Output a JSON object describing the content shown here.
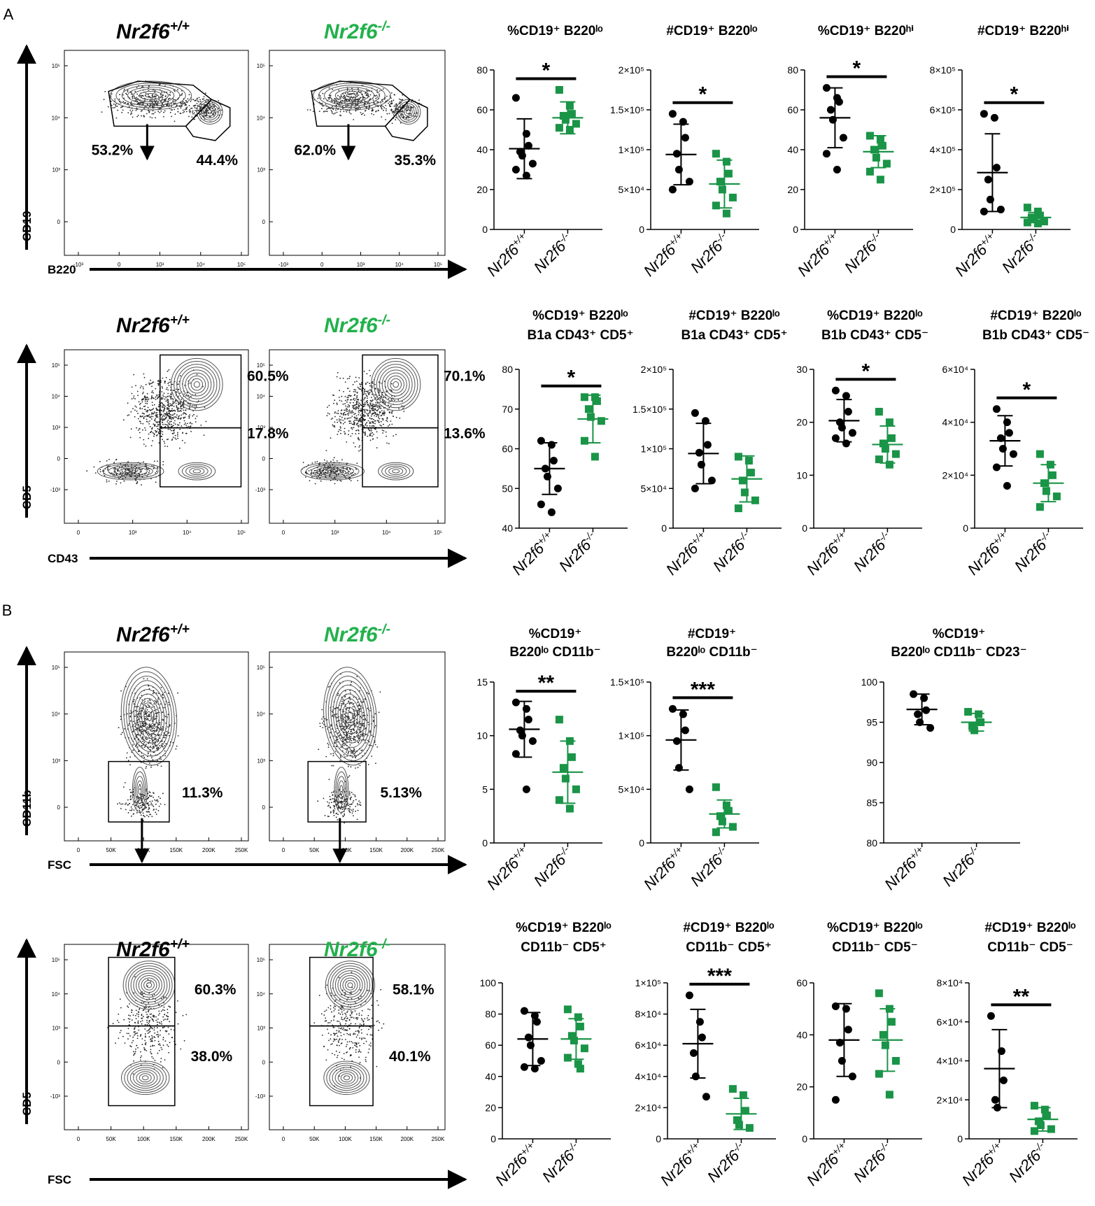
{
  "panel_labels": [
    "A",
    "B"
  ],
  "colors": {
    "wt": "#000000",
    "ko": "#1a9447",
    "geno_ko": "#22b14c",
    "contour": "#555555"
  },
  "flow_rows": [
    {
      "genotypes": [
        "Nr2f6+/+",
        "Nr2f6-/-"
      ],
      "x_axis": "B220",
      "y_axis": "CD19",
      "y_ticks": [
        "10⁵",
        "10⁴",
        "10³",
        "0"
      ],
      "x_ticks": [
        "-10³",
        "0",
        "10³",
        "10⁴",
        "10⁵"
      ],
      "percentages": [
        [
          "53.2%",
          "44.4%"
        ],
        [
          "62.0%",
          "35.3%"
        ]
      ]
    },
    {
      "genotypes": [
        "Nr2f6+/+",
        "Nr2f6-/-"
      ],
      "x_axis": "CD43",
      "y_axis": "CD5",
      "y_ticks": [
        "10⁵",
        "10⁴",
        "10³",
        "0",
        "-10³"
      ],
      "x_ticks": [
        "0",
        "10³",
        "10⁴",
        "10⁵"
      ],
      "percentages": [
        [
          "60.5%",
          "17.8%"
        ],
        [
          "70.1%",
          "13.6%"
        ]
      ]
    },
    {
      "genotypes": [
        "Nr2f6+/+",
        "Nr2f6-/-"
      ],
      "x_axis": "FSC",
      "y_axis": "CD11b",
      "y_ticks": [
        "10⁵",
        "10⁴",
        "10³",
        "0"
      ],
      "x_ticks": [
        "0",
        "50K",
        "100K",
        "150K",
        "200K",
        "250K"
      ],
      "percentages": [
        [
          "11.3%"
        ],
        [
          "5.13%"
        ]
      ]
    },
    {
      "genotypes": [
        "Nr2f6+/+",
        "Nr2f6-/-"
      ],
      "x_axis": "FSC",
      "y_axis": "CD5",
      "y_ticks": [
        "10⁵",
        "10⁴",
        "10³",
        "0",
        "-10³"
      ],
      "x_ticks": [
        "0",
        "50K",
        "100K",
        "150K",
        "200K",
        "250K"
      ],
      "percentages": [
        [
          "60.3%",
          "38.0%"
        ],
        [
          "58.1%",
          "40.1%"
        ]
      ]
    }
  ],
  "chart_data": [
    {
      "type": "scatter",
      "title": [
        "%CD19⁺ B220ˡᵒ"
      ],
      "categories": [
        "Nr2f6+/+",
        "Nr2f6-/-"
      ],
      "ylim": [
        0,
        80
      ],
      "yticks": [
        "0",
        "20",
        "40",
        "60",
        "80"
      ],
      "significance": "*",
      "series": [
        {
          "name": "Nr2f6+/+",
          "values": [
            66,
            48,
            42,
            39,
            37,
            33,
            30,
            27
          ],
          "mean": 40.5,
          "sd": 15
        },
        {
          "name": "Nr2f6-/-",
          "values": [
            70,
            62,
            58,
            57,
            55,
            53,
            51,
            50
          ],
          "mean": 56,
          "sd": 8
        }
      ]
    },
    {
      "type": "scatter",
      "title": [
        "#CD19⁺ B220ˡᵒ"
      ],
      "categories": [
        "Nr2f6+/+",
        "Nr2f6-/-"
      ],
      "ylim": [
        0,
        200000
      ],
      "yticks": [
        "0",
        "5×10⁴",
        "1×10⁵",
        "1.5×10⁵",
        "2×10⁵"
      ],
      "significance": "*",
      "series": [
        {
          "name": "Nr2f6+/+",
          "values": [
            145000,
            135000,
            115000,
            95000,
            75000,
            60000,
            50000
          ],
          "mean": 94000,
          "sd": 38000
        },
        {
          "name": "Nr2f6-/-",
          "values": [
            95000,
            85000,
            70000,
            60000,
            50000,
            40000,
            30000,
            20000
          ],
          "mean": 57000,
          "sd": 30000
        }
      ]
    },
    {
      "type": "scatter",
      "title": [
        "%CD19⁺ B220ʰⁱ"
      ],
      "categories": [
        "Nr2f6+/+",
        "Nr2f6-/-"
      ],
      "ylim": [
        0,
        80
      ],
      "yticks": [
        "0",
        "20",
        "40",
        "60",
        "80"
      ],
      "significance": "*",
      "series": [
        {
          "name": "Nr2f6+/+",
          "values": [
            71,
            66,
            64,
            60,
            55,
            46,
            38,
            30
          ],
          "mean": 56,
          "sd": 15
        },
        {
          "name": "Nr2f6-/-",
          "values": [
            47,
            45,
            42,
            40,
            36,
            33,
            29,
            25
          ],
          "mean": 39,
          "sd": 8
        }
      ]
    },
    {
      "type": "scatter",
      "title": [
        "#CD19⁺ B220ʰⁱ"
      ],
      "categories": [
        "Nr2f6+/+",
        "Nr2f6-/-"
      ],
      "ylim": [
        0,
        800000
      ],
      "yticks": [
        "0",
        "2×10⁵",
        "4×10⁵",
        "6×10⁵",
        "8×10⁵"
      ],
      "significance": "*",
      "series": [
        {
          "name": "Nr2f6+/+",
          "values": [
            580000,
            560000,
            310000,
            250000,
            150000,
            100000,
            90000
          ],
          "mean": 285000,
          "sd": 195000
        },
        {
          "name": "Nr2f6-/-",
          "values": [
            110000,
            90000,
            70000,
            60000,
            50000,
            40000,
            35000,
            30000
          ],
          "mean": 60000,
          "sd": 25000
        }
      ]
    },
    {
      "type": "scatter",
      "title": [
        "%CD19⁺ B220ˡᵒ",
        "B1a CD43⁺ CD5⁺"
      ],
      "categories": [
        "Nr2f6+/+",
        "Nr2f6-/-"
      ],
      "ylim": [
        40,
        80
      ],
      "yticks": [
        "40",
        "50",
        "60",
        "70",
        "80"
      ],
      "significance": "*",
      "series": [
        {
          "name": "Nr2f6+/+",
          "values": [
            62,
            61,
            57,
            55,
            53,
            50,
            46,
            44
          ],
          "mean": 55,
          "sd": 6.5
        },
        {
          "name": "Nr2f6-/-",
          "values": [
            73,
            73,
            72,
            70,
            68,
            67,
            62,
            58
          ],
          "mean": 67.5,
          "sd": 6
        }
      ]
    },
    {
      "type": "scatter",
      "title": [
        "#CD19⁺ B220ˡᵒ",
        "B1a CD43⁺ CD5⁺"
      ],
      "categories": [
        "Nr2f6+/+",
        "Nr2f6-/-"
      ],
      "ylim": [
        0,
        200000
      ],
      "yticks": [
        "0",
        "5×10⁴",
        "1×10⁵",
        "1.5×10⁵",
        "2×10⁵"
      ],
      "significance": "",
      "series": [
        {
          "name": "Nr2f6+/+",
          "values": [
            145000,
            135000,
            105000,
            95000,
            80000,
            60000,
            50000
          ],
          "mean": 94000,
          "sd": 38000
        },
        {
          "name": "Nr2f6-/-",
          "values": [
            90000,
            85000,
            70000,
            60000,
            45000,
            35000,
            25000
          ],
          "mean": 62000,
          "sd": 29000
        }
      ]
    },
    {
      "type": "scatter",
      "title": [
        "%CD19⁺ B220ˡᵒ",
        "B1b CD43⁺ CD5⁻"
      ],
      "categories": [
        "Nr2f6+/+",
        "Nr2f6-/-"
      ],
      "ylim": [
        0,
        30
      ],
      "yticks": [
        "0",
        "10",
        "20",
        "30"
      ],
      "significance": "*",
      "series": [
        {
          "name": "Nr2f6+/+",
          "values": [
            26,
            25,
            22,
            20,
            19,
            18,
            17,
            16
          ],
          "mean": 20.3,
          "sd": 4
        },
        {
          "name": "Nr2f6-/-",
          "values": [
            22,
            20,
            17,
            16,
            15,
            14,
            13,
            12
          ],
          "mean": 15.8,
          "sd": 3.5
        }
      ]
    },
    {
      "type": "scatter",
      "title": [
        "#CD19⁺ B220ˡᵒ",
        "B1b CD43⁺ CD5⁻"
      ],
      "categories": [
        "Nr2f6+/+",
        "Nr2f6-/-"
      ],
      "ylim": [
        0,
        60000
      ],
      "yticks": [
        "0",
        "2×10⁴",
        "4×10⁴",
        "6×10⁴"
      ],
      "significance": "*",
      "series": [
        {
          "name": "Nr2f6+/+",
          "values": [
            45000,
            40000,
            36000,
            34000,
            30000,
            28000,
            23000,
            16000
          ],
          "mean": 33000,
          "sd": 9500
        },
        {
          "name": "Nr2f6-/-",
          "values": [
            28000,
            24000,
            20000,
            17000,
            14000,
            12000,
            8000
          ],
          "mean": 17000,
          "sd": 7000
        }
      ]
    },
    {
      "type": "scatter",
      "title": [
        "%CD19⁺",
        "B220ˡᵒ CD11b⁻"
      ],
      "categories": [
        "Nr2f6+/+",
        "Nr2f6-/-"
      ],
      "ylim": [
        0,
        15
      ],
      "yticks": [
        "0",
        "5",
        "10",
        "15"
      ],
      "significance": "**",
      "series": [
        {
          "name": "Nr2f6+/+",
          "values": [
            13.1,
            12.5,
            11.5,
            10.5,
            10,
            9.5,
            8.3,
            5
          ],
          "mean": 10.6,
          "sd": 2.6
        },
        {
          "name": "Nr2f6-/-",
          "values": [
            11.5,
            9.5,
            8,
            7,
            6,
            5,
            4,
            3.2
          ],
          "mean": 6.6,
          "sd": 2.9
        }
      ]
    },
    {
      "type": "scatter",
      "title": [
        "#CD19⁺",
        "B220ˡᵒ CD11b⁻"
      ],
      "categories": [
        "Nr2f6+/+",
        "Nr2f6-/-"
      ],
      "ylim": [
        0,
        150000
      ],
      "yticks": [
        "0",
        "5×10⁴",
        "1×10⁵",
        "1.5×10⁵"
      ],
      "significance": "***",
      "series": [
        {
          "name": "Nr2f6+/+",
          "values": [
            125000,
            120000,
            105000,
            95000,
            70000,
            50000
          ],
          "mean": 96000,
          "sd": 28000
        },
        {
          "name": "Nr2f6-/-",
          "values": [
            52000,
            35000,
            30000,
            25000,
            20000,
            15000,
            10000
          ],
          "mean": 27000,
          "sd": 13000
        }
      ]
    },
    {
      "type": "scatter",
      "title": [
        "%CD19⁺",
        "B220ˡᵒ CD11b⁻ CD23⁻"
      ],
      "categories": [
        "Nr2f6+/+",
        "Nr2f6-/-"
      ],
      "ylim": [
        80,
        100
      ],
      "yticks": [
        "80",
        "85",
        "90",
        "95",
        "100"
      ],
      "significance": "",
      "series": [
        {
          "name": "Nr2f6+/+",
          "values": [
            98.5,
            98,
            96.5,
            96,
            95,
            94.3
          ],
          "mean": 96.6,
          "sd": 1.9
        },
        {
          "name": "Nr2f6-/-",
          "values": [
            96.3,
            96,
            95,
            94.5,
            94
          ],
          "mean": 95,
          "sd": 1.1
        }
      ]
    },
    {
      "type": "scatter",
      "title": [
        "%CD19⁺ B220ˡᵒ",
        "CD11b⁻ CD5⁺"
      ],
      "categories": [
        "Nr2f6+/+",
        "Nr2f6-/-"
      ],
      "ylim": [
        0,
        100
      ],
      "yticks": [
        "0",
        "20",
        "40",
        "60",
        "80",
        "100"
      ],
      "significance": "",
      "series": [
        {
          "name": "Nr2f6+/+",
          "values": [
            82,
            79,
            75,
            65,
            60,
            50,
            46,
            45
          ],
          "mean": 64,
          "sd": 17
        },
        {
          "name": "Nr2f6-/-",
          "values": [
            83,
            78,
            72,
            66,
            63,
            58,
            52,
            48,
            45
          ],
          "mean": 64,
          "sd": 13
        }
      ]
    },
    {
      "type": "scatter",
      "title": [
        "#CD19⁺ B220ˡᵒ",
        "CD11b⁻ CD5⁺"
      ],
      "categories": [
        "Nr2f6+/+",
        "Nr2f6-/-"
      ],
      "ylim": [
        0,
        100000
      ],
      "yticks": [
        "0",
        "2×10⁴",
        "4×10⁴",
        "6×10⁴",
        "8×10⁴",
        "1×10⁵"
      ],
      "significance": "***",
      "series": [
        {
          "name": "Nr2f6+/+",
          "values": [
            92000,
            75000,
            65000,
            55000,
            40000,
            27000
          ],
          "mean": 61000,
          "sd": 22000
        },
        {
          "name": "Nr2f6-/-",
          "values": [
            32000,
            28000,
            18000,
            12000,
            9000,
            7000
          ],
          "mean": 16000,
          "sd": 10000
        }
      ]
    },
    {
      "type": "scatter",
      "title": [
        "%CD19⁺ B220ˡᵒ",
        "CD11b⁻ CD5⁻"
      ],
      "categories": [
        "Nr2f6+/+",
        "Nr2f6-/-"
      ],
      "ylim": [
        0,
        60
      ],
      "yticks": [
        "0",
        "20",
        "40",
        "60"
      ],
      "significance": "",
      "series": [
        {
          "name": "Nr2f6+/+",
          "values": [
            51,
            50,
            42,
            37,
            30,
            24,
            15
          ],
          "mean": 38,
          "sd": 14
        },
        {
          "name": "Nr2f6-/-",
          "values": [
            56,
            50,
            45,
            40,
            36,
            30,
            25,
            17
          ],
          "mean": 38,
          "sd": 12
        }
      ]
    },
    {
      "type": "scatter",
      "title": [
        "#CD19⁺ B220ˡᵒ",
        "CD11b⁻ CD5⁻"
      ],
      "categories": [
        "Nr2f6+/+",
        "Nr2f6-/-"
      ],
      "ylim": [
        0,
        80000
      ],
      "yticks": [
        "0",
        "2×10⁴",
        "4×10⁴",
        "6×10⁴",
        "8×10⁴"
      ],
      "significance": "**",
      "series": [
        {
          "name": "Nr2f6+/+",
          "values": [
            63000,
            45000,
            30000,
            20000,
            16000
          ],
          "mean": 36000,
          "sd": 20000
        },
        {
          "name": "Nr2f6-/-",
          "values": [
            17000,
            15000,
            12000,
            9000,
            7000,
            5000,
            4000
          ],
          "mean": 10000,
          "sd": 6000
        }
      ]
    }
  ]
}
